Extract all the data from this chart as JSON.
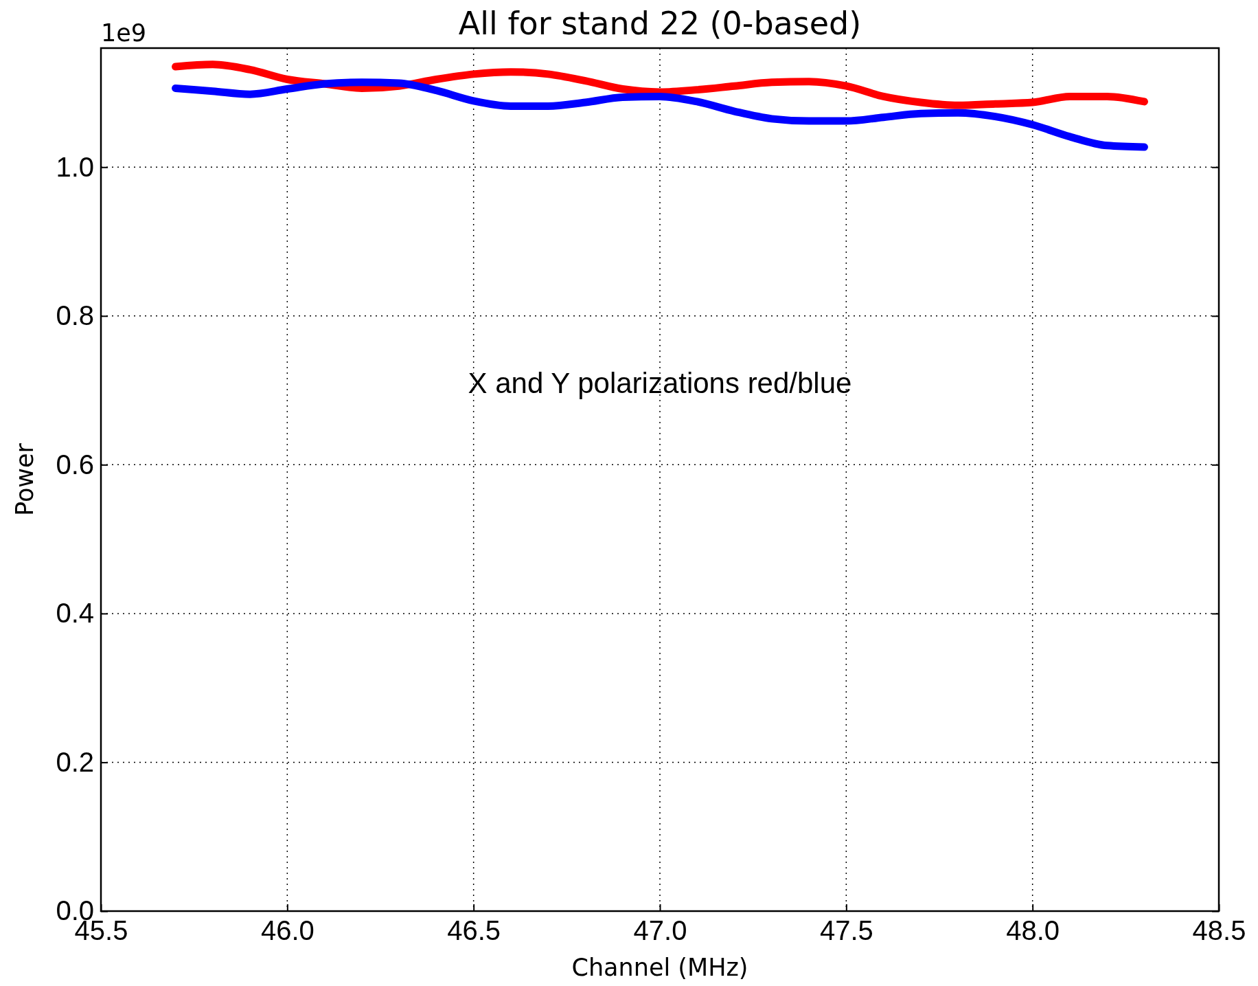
{
  "chart_data": {
    "type": "line",
    "title": "All for stand 22 (0-based)",
    "xlabel": "Channel (MHz)",
    "ylabel": "Power",
    "annotations": [
      "1e9",
      "X and Y polarizations red/blue"
    ],
    "x": [
      45.7,
      45.8,
      45.9,
      46.0,
      46.1,
      46.2,
      46.3,
      46.4,
      46.5,
      46.6,
      46.7,
      46.8,
      46.9,
      47.0,
      47.1,
      47.2,
      47.3,
      47.4,
      47.5,
      47.6,
      47.7,
      47.8,
      47.9,
      48.0,
      48.1,
      48.2,
      48.3
    ],
    "series": [
      {
        "color": "#ff0000",
        "values": [
          1.135,
          1.138,
          1.131,
          1.118,
          1.112,
          1.106,
          1.109,
          1.118,
          1.125,
          1.128,
          1.125,
          1.116,
          1.105,
          1.101,
          1.104,
          1.109,
          1.114,
          1.115,
          1.109,
          1.095,
          1.087,
          1.083,
          1.085,
          1.087,
          1.095,
          1.095,
          1.088
        ]
      },
      {
        "color": "#0000ff",
        "values": [
          1.106,
          1.102,
          1.098,
          1.105,
          1.112,
          1.114,
          1.113,
          1.103,
          1.089,
          1.082,
          1.082,
          1.087,
          1.094,
          1.095,
          1.088,
          1.075,
          1.065,
          1.062,
          1.062,
          1.067,
          1.072,
          1.073,
          1.068,
          1.057,
          1.041,
          1.029,
          1.027
        ]
      }
    ],
    "xlim": [
      45.5,
      48.5
    ],
    "ylim": [
      0,
      1.16
    ],
    "xticks": [
      45.5,
      {
        "value": 46,
        "label": "46.0"
      },
      46.5,
      {
        "value": 47,
        "label": "47.0"
      },
      47.5,
      {
        "value": 48,
        "label": "48.0"
      },
      48.5
    ],
    "yticks": [
      {
        "value": 0,
        "label": "0.0"
      },
      0.2,
      0.4,
      0.6,
      0.8,
      {
        "value": 1,
        "label": "1.0"
      }
    ],
    "grid": true,
    "marker": "none",
    "line_style": "solid"
  }
}
